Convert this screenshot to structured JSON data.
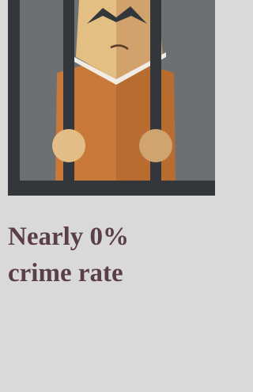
{
  "heading": {
    "lines": [
      "Nearly 0%",
      "crime rate"
    ]
  }
}
